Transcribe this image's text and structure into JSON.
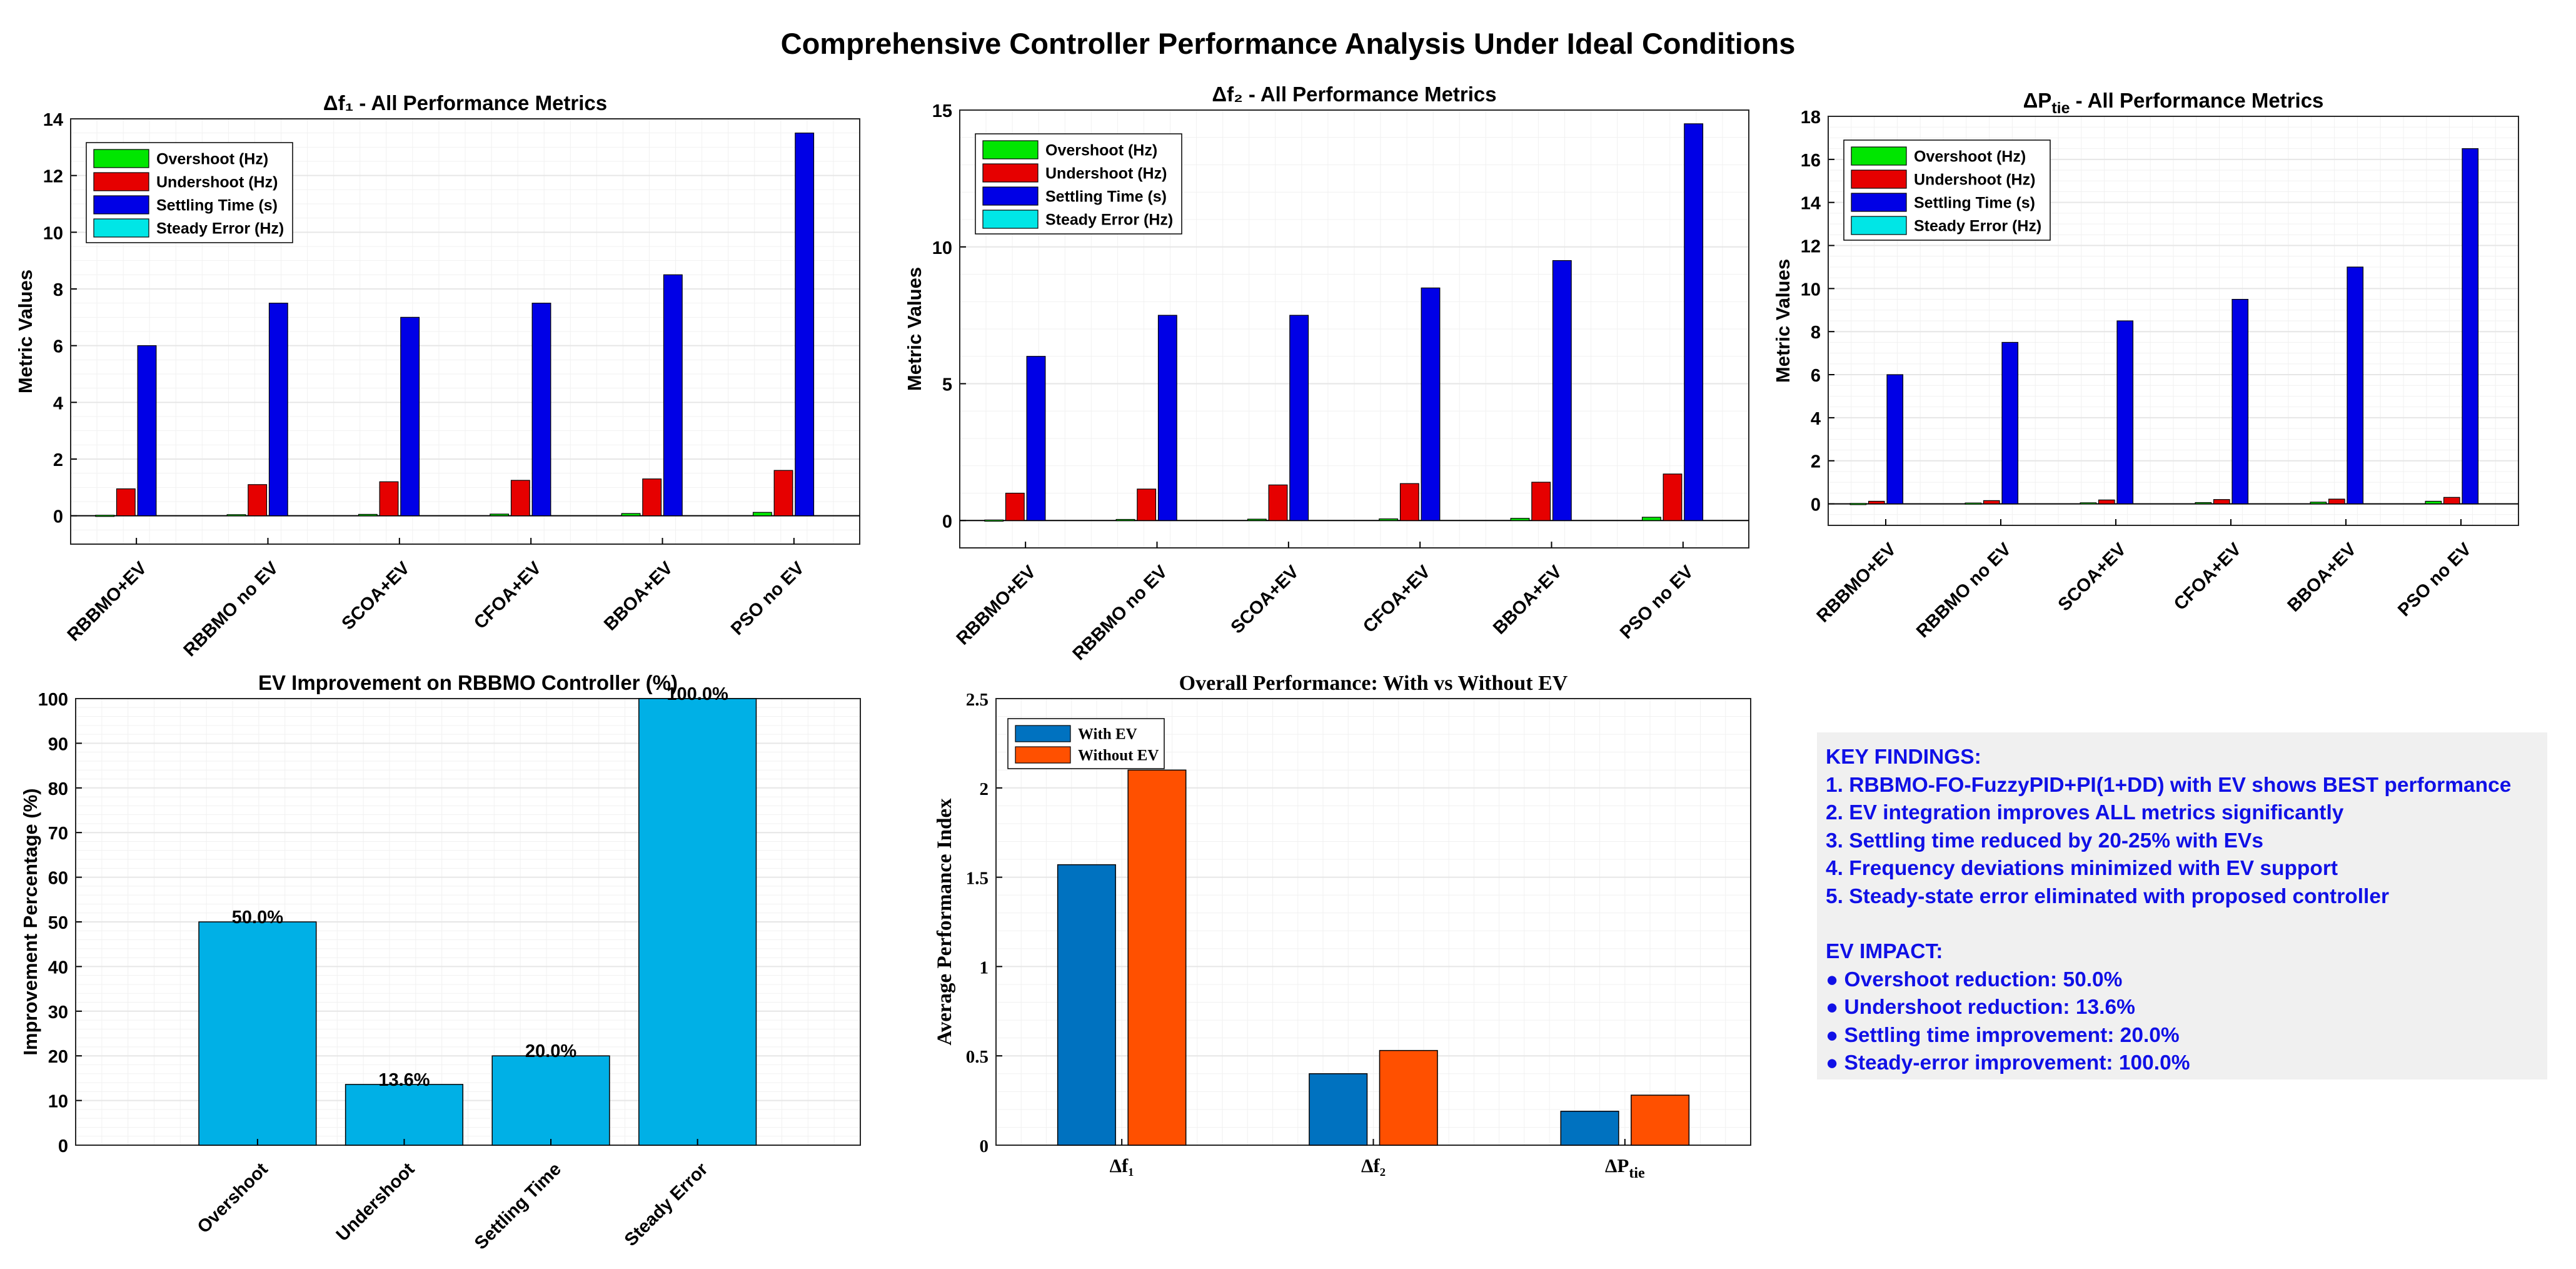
{
  "figure_title": "Comprehensive Controller Performance Analysis Under Ideal Conditions",
  "chart_data": [
    {
      "type": "bar",
      "title": "Δf₁ - All Performance Metrics",
      "ylabel": "Metric Values",
      "xlabel": "",
      "ylim": [
        -1,
        14
      ],
      "yticks": [
        0,
        2,
        4,
        6,
        8,
        10,
        12,
        14
      ],
      "grid": true,
      "legend_position": "top-left",
      "categories": [
        "RBBMO+EV",
        "RBBMO no EV",
        "SCOA+EV",
        "CFOA+EV",
        "BBOA+EV",
        "PSO no EV"
      ],
      "series": [
        {
          "name": "Overshoot (Hz)",
          "color": "#00e600",
          "values": [
            0.02,
            0.04,
            0.05,
            0.06,
            0.08,
            0.12
          ]
        },
        {
          "name": "Undershoot (Hz)",
          "color": "#e60000",
          "values": [
            0.95,
            1.1,
            1.2,
            1.25,
            1.3,
            1.6
          ]
        },
        {
          "name": "Settling Time (s)",
          "color": "#0000e6",
          "values": [
            6,
            7.5,
            7,
            7.5,
            8.5,
            13.5
          ]
        },
        {
          "name": "Steady Error (Hz)",
          "color": "#00e6e6",
          "values": [
            0,
            0,
            0,
            0,
            0,
            0
          ]
        }
      ]
    },
    {
      "type": "bar",
      "title": "Δf₂ - All Performance Metrics",
      "ylabel": "Metric Values",
      "xlabel": "",
      "ylim": [
        -1,
        15
      ],
      "yticks": [
        0,
        5,
        10,
        15
      ],
      "grid": true,
      "legend_position": "top-left",
      "categories": [
        "RBBMO+EV",
        "RBBMO no EV",
        "SCOA+EV",
        "CFOA+EV",
        "BBOA+EV",
        "PSO no EV"
      ],
      "series": [
        {
          "name": "Overshoot (Hz)",
          "color": "#00e600",
          "values": [
            0.02,
            0.04,
            0.05,
            0.06,
            0.08,
            0.12
          ]
        },
        {
          "name": "Undershoot (Hz)",
          "color": "#e60000",
          "values": [
            1,
            1.15,
            1.3,
            1.35,
            1.4,
            1.7
          ]
        },
        {
          "name": "Settling Time (s)",
          "color": "#0000e6",
          "values": [
            6,
            7.5,
            7.5,
            8.5,
            9.5,
            14.5
          ]
        },
        {
          "name": "Steady Error (Hz)",
          "color": "#00e6e6",
          "values": [
            0,
            0,
            0,
            0,
            0,
            0
          ]
        }
      ]
    },
    {
      "type": "bar",
      "title_main": "ΔP",
      "title_sub": "tie",
      "title_rest": " - All Performance Metrics",
      "ylabel": "Metric Values",
      "xlabel": "",
      "ylim": [
        -1,
        18
      ],
      "yticks": [
        0,
        2,
        4,
        6,
        8,
        10,
        12,
        14,
        16,
        18
      ],
      "grid": true,
      "legend_position": "top-left",
      "categories": [
        "RBBMO+EV",
        "RBBMO no EV",
        "SCOA+EV",
        "CFOA+EV",
        "BBOA+EV",
        "PSO no EV"
      ],
      "series": [
        {
          "name": "Overshoot (Hz)",
          "color": "#00e600",
          "values": [
            0.02,
            0.04,
            0.05,
            0.06,
            0.08,
            0.12
          ]
        },
        {
          "name": "Undershoot (Hz)",
          "color": "#e60000",
          "values": [
            0.12,
            0.15,
            0.18,
            0.2,
            0.22,
            0.3
          ]
        },
        {
          "name": "Settling Time (s)",
          "color": "#0000e6",
          "values": [
            6,
            7.5,
            8.5,
            9.5,
            11,
            16.5
          ]
        },
        {
          "name": "Steady Error (Hz)",
          "color": "#00e6e6",
          "values": [
            0,
            0,
            0,
            0,
            0,
            0
          ]
        }
      ]
    },
    {
      "type": "bar",
      "title": "EV Improvement on RBBMO Controller (%)",
      "ylabel": "Improvement Percentage (%)",
      "xlabel": "",
      "ylim": [
        0,
        100
      ],
      "yticks": [
        0,
        10,
        20,
        30,
        40,
        50,
        60,
        70,
        80,
        90,
        100
      ],
      "grid": true,
      "categories": [
        "Overshoot",
        "Undershoot",
        "Settling Time",
        "Steady Error"
      ],
      "values": [
        50.0,
        13.6,
        20.0,
        100.0
      ],
      "data_labels": [
        "50.0%",
        "13.6%",
        "20.0%",
        "100.0%"
      ],
      "color": "#00b0e6"
    },
    {
      "type": "bar",
      "title": "Overall Performance: With vs Without EV",
      "ylabel": "Average Performance Index",
      "xlabel": "",
      "ylim": [
        0,
        2.5
      ],
      "yticks": [
        0,
        0.5,
        1,
        1.5,
        2,
        2.5
      ],
      "ytick_labels": [
        "0",
        "0.5",
        "1",
        "1.5",
        "2",
        "2.5"
      ],
      "grid": true,
      "legend_position": "top-left",
      "categories": [
        "Δf₁",
        "Δf₂",
        "ΔP"
      ],
      "category_subscripts": [
        "",
        "",
        "tie"
      ],
      "series": [
        {
          "name": "With EV",
          "color": "#0072c0",
          "values": [
            1.57,
            0.4,
            0.19
          ]
        },
        {
          "name": "Without EV",
          "color": "#ff5000",
          "values": [
            2.1,
            0.53,
            0.28
          ]
        }
      ]
    }
  ],
  "findings": {
    "heading": "KEY FINDINGS:",
    "items": [
      "1. RBBMO-FO-FuzzyPID+PI(1+DD) with EV shows BEST performance",
      "2. EV integration improves ALL metrics significantly",
      "3. Settling time reduced by 20-25% with EVs",
      "4. Frequency deviations minimized with EV support",
      "5. Steady-state error eliminated with proposed controller"
    ],
    "impact_heading": "EV IMPACT:",
    "impact_items": [
      "● Overshoot reduction: 50.0%",
      "● Undershoot reduction: 13.6%",
      "● Settling time improvement: 20.0%",
      "● Steady-error improvement: 100.0%"
    ]
  }
}
